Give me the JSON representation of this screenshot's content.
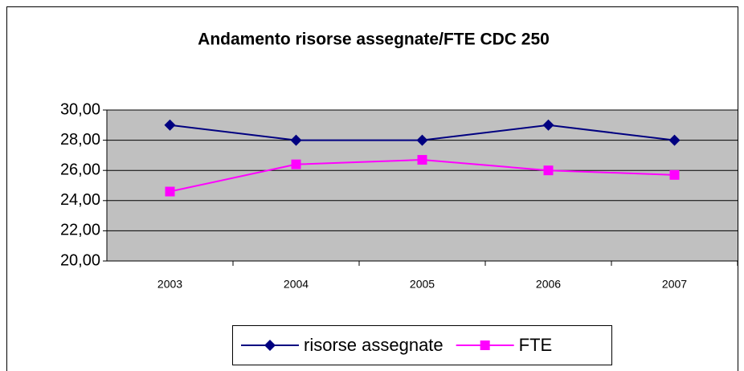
{
  "chart_data": {
    "type": "line",
    "title": "Andamento risorse assegnate/FTE CDC 250",
    "categories": [
      "2003",
      "2004",
      "2005",
      "2006",
      "2007"
    ],
    "series": [
      {
        "name": "risorse assegnate",
        "color": "#000080",
        "marker": "diamond",
        "values": [
          29,
          28,
          28,
          29,
          28
        ]
      },
      {
        "name": "FTE",
        "color": "#ff00ff",
        "marker": "square",
        "values": [
          24.6,
          26.4,
          26.7,
          26.0,
          25.7
        ]
      }
    ],
    "ylim": [
      20,
      30
    ],
    "yticks": [
      {
        "value": 20,
        "label": "20,00"
      },
      {
        "value": 22,
        "label": "22,00"
      },
      {
        "value": 24,
        "label": "24,00"
      },
      {
        "value": 26,
        "label": "26,00"
      },
      {
        "value": 28,
        "label": "28,00"
      },
      {
        "value": 30,
        "label": "30,00"
      }
    ],
    "grid": true,
    "plot_background": "#c0c0c0",
    "legend": "bottom"
  }
}
